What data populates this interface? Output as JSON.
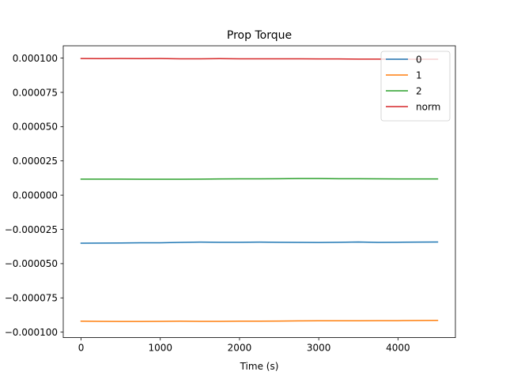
{
  "chart_data": {
    "type": "line",
    "title": "Prop Torque",
    "xlabel": "Time (s)",
    "ylabel": "",
    "xlim": [
      -225,
      4725
    ],
    "ylim": [
      -0.000104,
      0.000109
    ],
    "x_ticks": [
      0,
      1000,
      2000,
      3000,
      4000
    ],
    "x_tick_labels": [
      "0",
      "1000",
      "2000",
      "3000",
      "4000"
    ],
    "y_ticks": [
      -0.0001,
      -7.5e-05,
      -5e-05,
      -2.5e-05,
      0,
      2.5e-05,
      5e-05,
      7.5e-05,
      0.0001
    ],
    "y_tick_labels": [
      "−0.000100",
      "−0.000075",
      "−0.000050",
      "−0.000025",
      "0.000000",
      "0.000025",
      "0.000050",
      "0.000075",
      "0.000100"
    ],
    "grid": false,
    "legend_position": "top-right",
    "x": [
      0,
      250,
      500,
      750,
      1000,
      1250,
      1500,
      1750,
      2000,
      2250,
      2500,
      2750,
      3000,
      3250,
      3500,
      3750,
      4000,
      4250,
      4500
    ],
    "series": [
      {
        "name": "0",
        "color": "#1f77b4",
        "values": [
          -3.51e-05,
          -3.5e-05,
          -3.49e-05,
          -3.48e-05,
          -3.48e-05,
          -3.45e-05,
          -3.43e-05,
          -3.44e-05,
          -3.44e-05,
          -3.43e-05,
          -3.44e-05,
          -3.45e-05,
          -3.46e-05,
          -3.44e-05,
          -3.42e-05,
          -3.45e-05,
          -3.44e-05,
          -3.43e-05,
          -3.42e-05
        ]
      },
      {
        "name": "1",
        "color": "#ff7f0e",
        "values": [
          -9.2e-05,
          -9.21e-05,
          -9.22e-05,
          -9.22e-05,
          -9.21e-05,
          -9.2e-05,
          -9.21e-05,
          -9.21e-05,
          -9.2e-05,
          -9.2e-05,
          -9.19e-05,
          -9.18e-05,
          -9.17e-05,
          -9.17e-05,
          -9.17e-05,
          -9.16e-05,
          -9.16e-05,
          -9.15e-05,
          -9.14e-05
        ]
      },
      {
        "name": "2",
        "color": "#2ca02c",
        "values": [
          1.17e-05,
          1.17e-05,
          1.17e-05,
          1.16e-05,
          1.16e-05,
          1.16e-05,
          1.17e-05,
          1.18e-05,
          1.19e-05,
          1.19e-05,
          1.2e-05,
          1.21e-05,
          1.21e-05,
          1.2e-05,
          1.2e-05,
          1.19e-05,
          1.18e-05,
          1.18e-05,
          1.18e-05
        ]
      },
      {
        "name": "norm",
        "color": "#d62728",
        "values": [
          9.97e-05,
          9.96e-05,
          9.97e-05,
          9.96e-05,
          9.97e-05,
          9.95e-05,
          9.95e-05,
          9.96e-05,
          9.95e-05,
          9.95e-05,
          9.95e-05,
          9.95e-05,
          9.94e-05,
          9.94e-05,
          9.93e-05,
          9.93e-05,
          9.92e-05,
          9.92e-05,
          9.92e-05
        ]
      }
    ]
  }
}
